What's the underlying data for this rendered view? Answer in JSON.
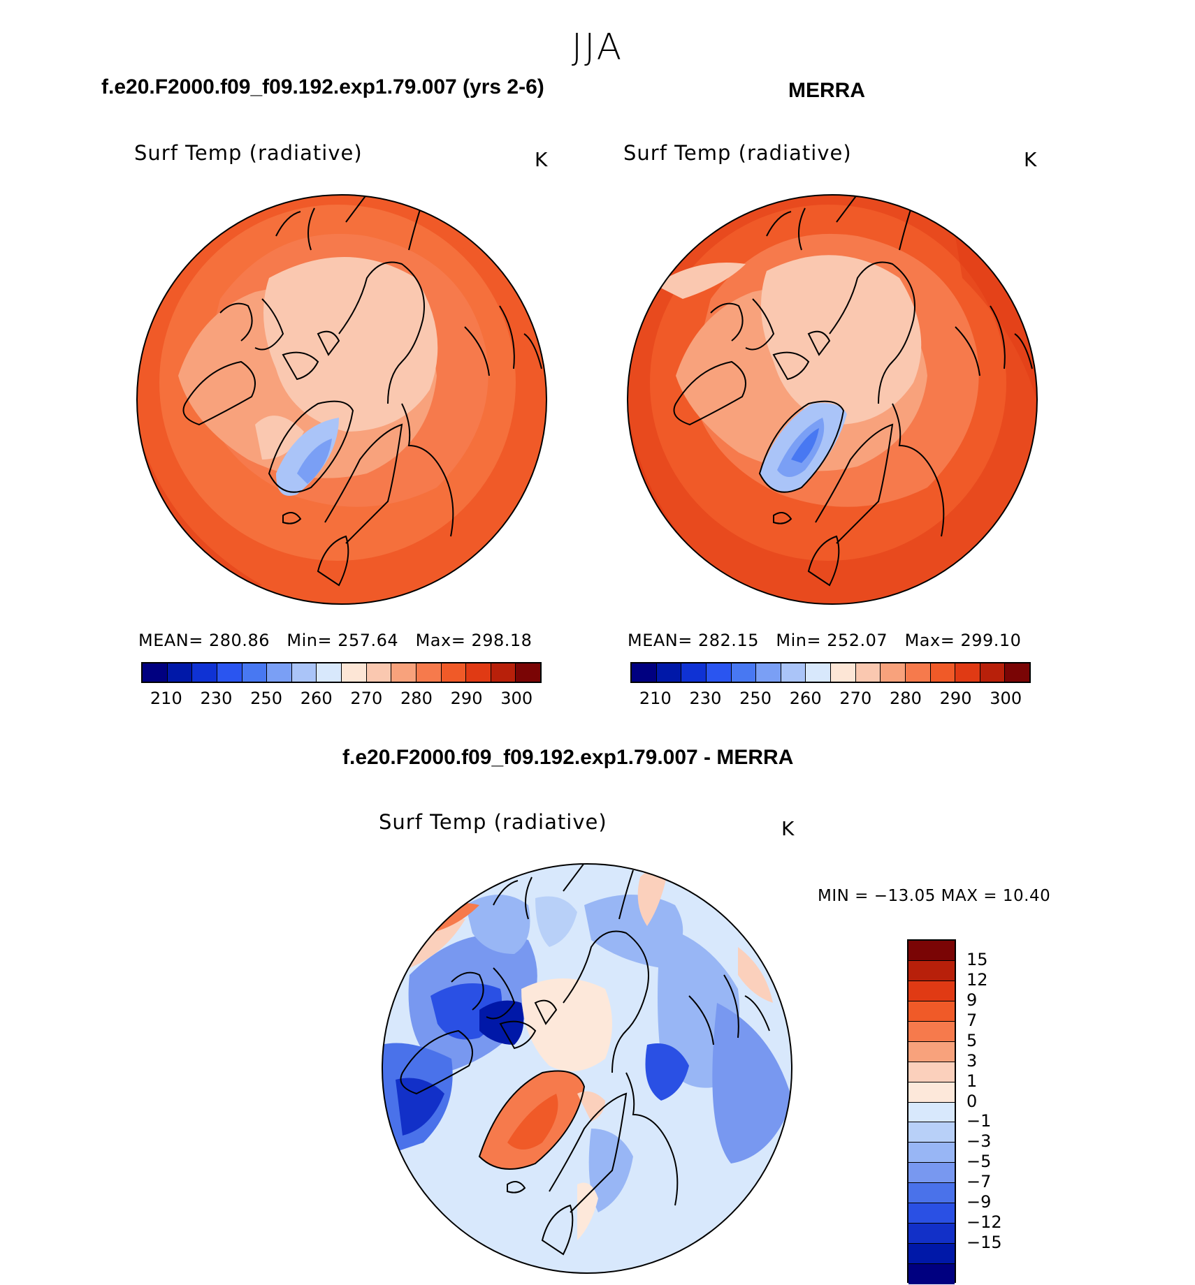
{
  "season": "JJA",
  "panels": {
    "model": {
      "title": "f.e20.F2000.f09_f09.192.exp1.79.007 (yrs 2-6)",
      "variable": "Surf Temp (radiative)",
      "unit": "K",
      "mean_label": "MEAN=",
      "mean": "280.86",
      "min_label": "Min=",
      "min": "257.64",
      "max_label": "Max=",
      "max": "298.18"
    },
    "obs": {
      "title": "MERRA",
      "variable": "Surf Temp (radiative)",
      "unit": "K",
      "mean_label": "MEAN=",
      "mean": "282.15",
      "min_label": "Min=",
      "min": "252.07",
      "max_label": "Max=",
      "max": "299.10"
    },
    "diff": {
      "title": "f.e20.F2000.f09_f09.192.exp1.79.007 - MERRA",
      "variable": "Surf Temp (radiative)",
      "unit": "K",
      "minmax": "MIN = −13.05 MAX =   10.40"
    }
  },
  "colorbars": {
    "absolute": {
      "colors": [
        "#000080",
        "#0018a8",
        "#0f32d4",
        "#2a55f0",
        "#4878f2",
        "#7a9ff5",
        "#aac4f8",
        "#d8e8fc",
        "#fde6d6",
        "#fac8b0",
        "#f8a27c",
        "#f67a4c",
        "#f05a28",
        "#e03a14",
        "#b8200a",
        "#7a0505"
      ],
      "tick_labels": [
        "210",
        "230",
        "250",
        "260",
        "270",
        "280",
        "290",
        "300"
      ]
    },
    "difference": {
      "colors": [
        "#7a0505",
        "#b8200a",
        "#e03a14",
        "#f05a28",
        "#f67a4c",
        "#f8a27c",
        "#fbd0bc",
        "#fde8da",
        "#d8e8fc",
        "#b8d0f8",
        "#98b6f5",
        "#7898f0",
        "#4a72ea",
        "#2a50e4",
        "#1230c8",
        "#0018a8",
        "#000080"
      ],
      "tick_labels": [
        "15",
        "12",
        "9",
        "7",
        "5",
        "3",
        "1",
        "0",
        "−1",
        "−3",
        "−5",
        "−7",
        "−9",
        "−12",
        "−15"
      ]
    }
  }
}
